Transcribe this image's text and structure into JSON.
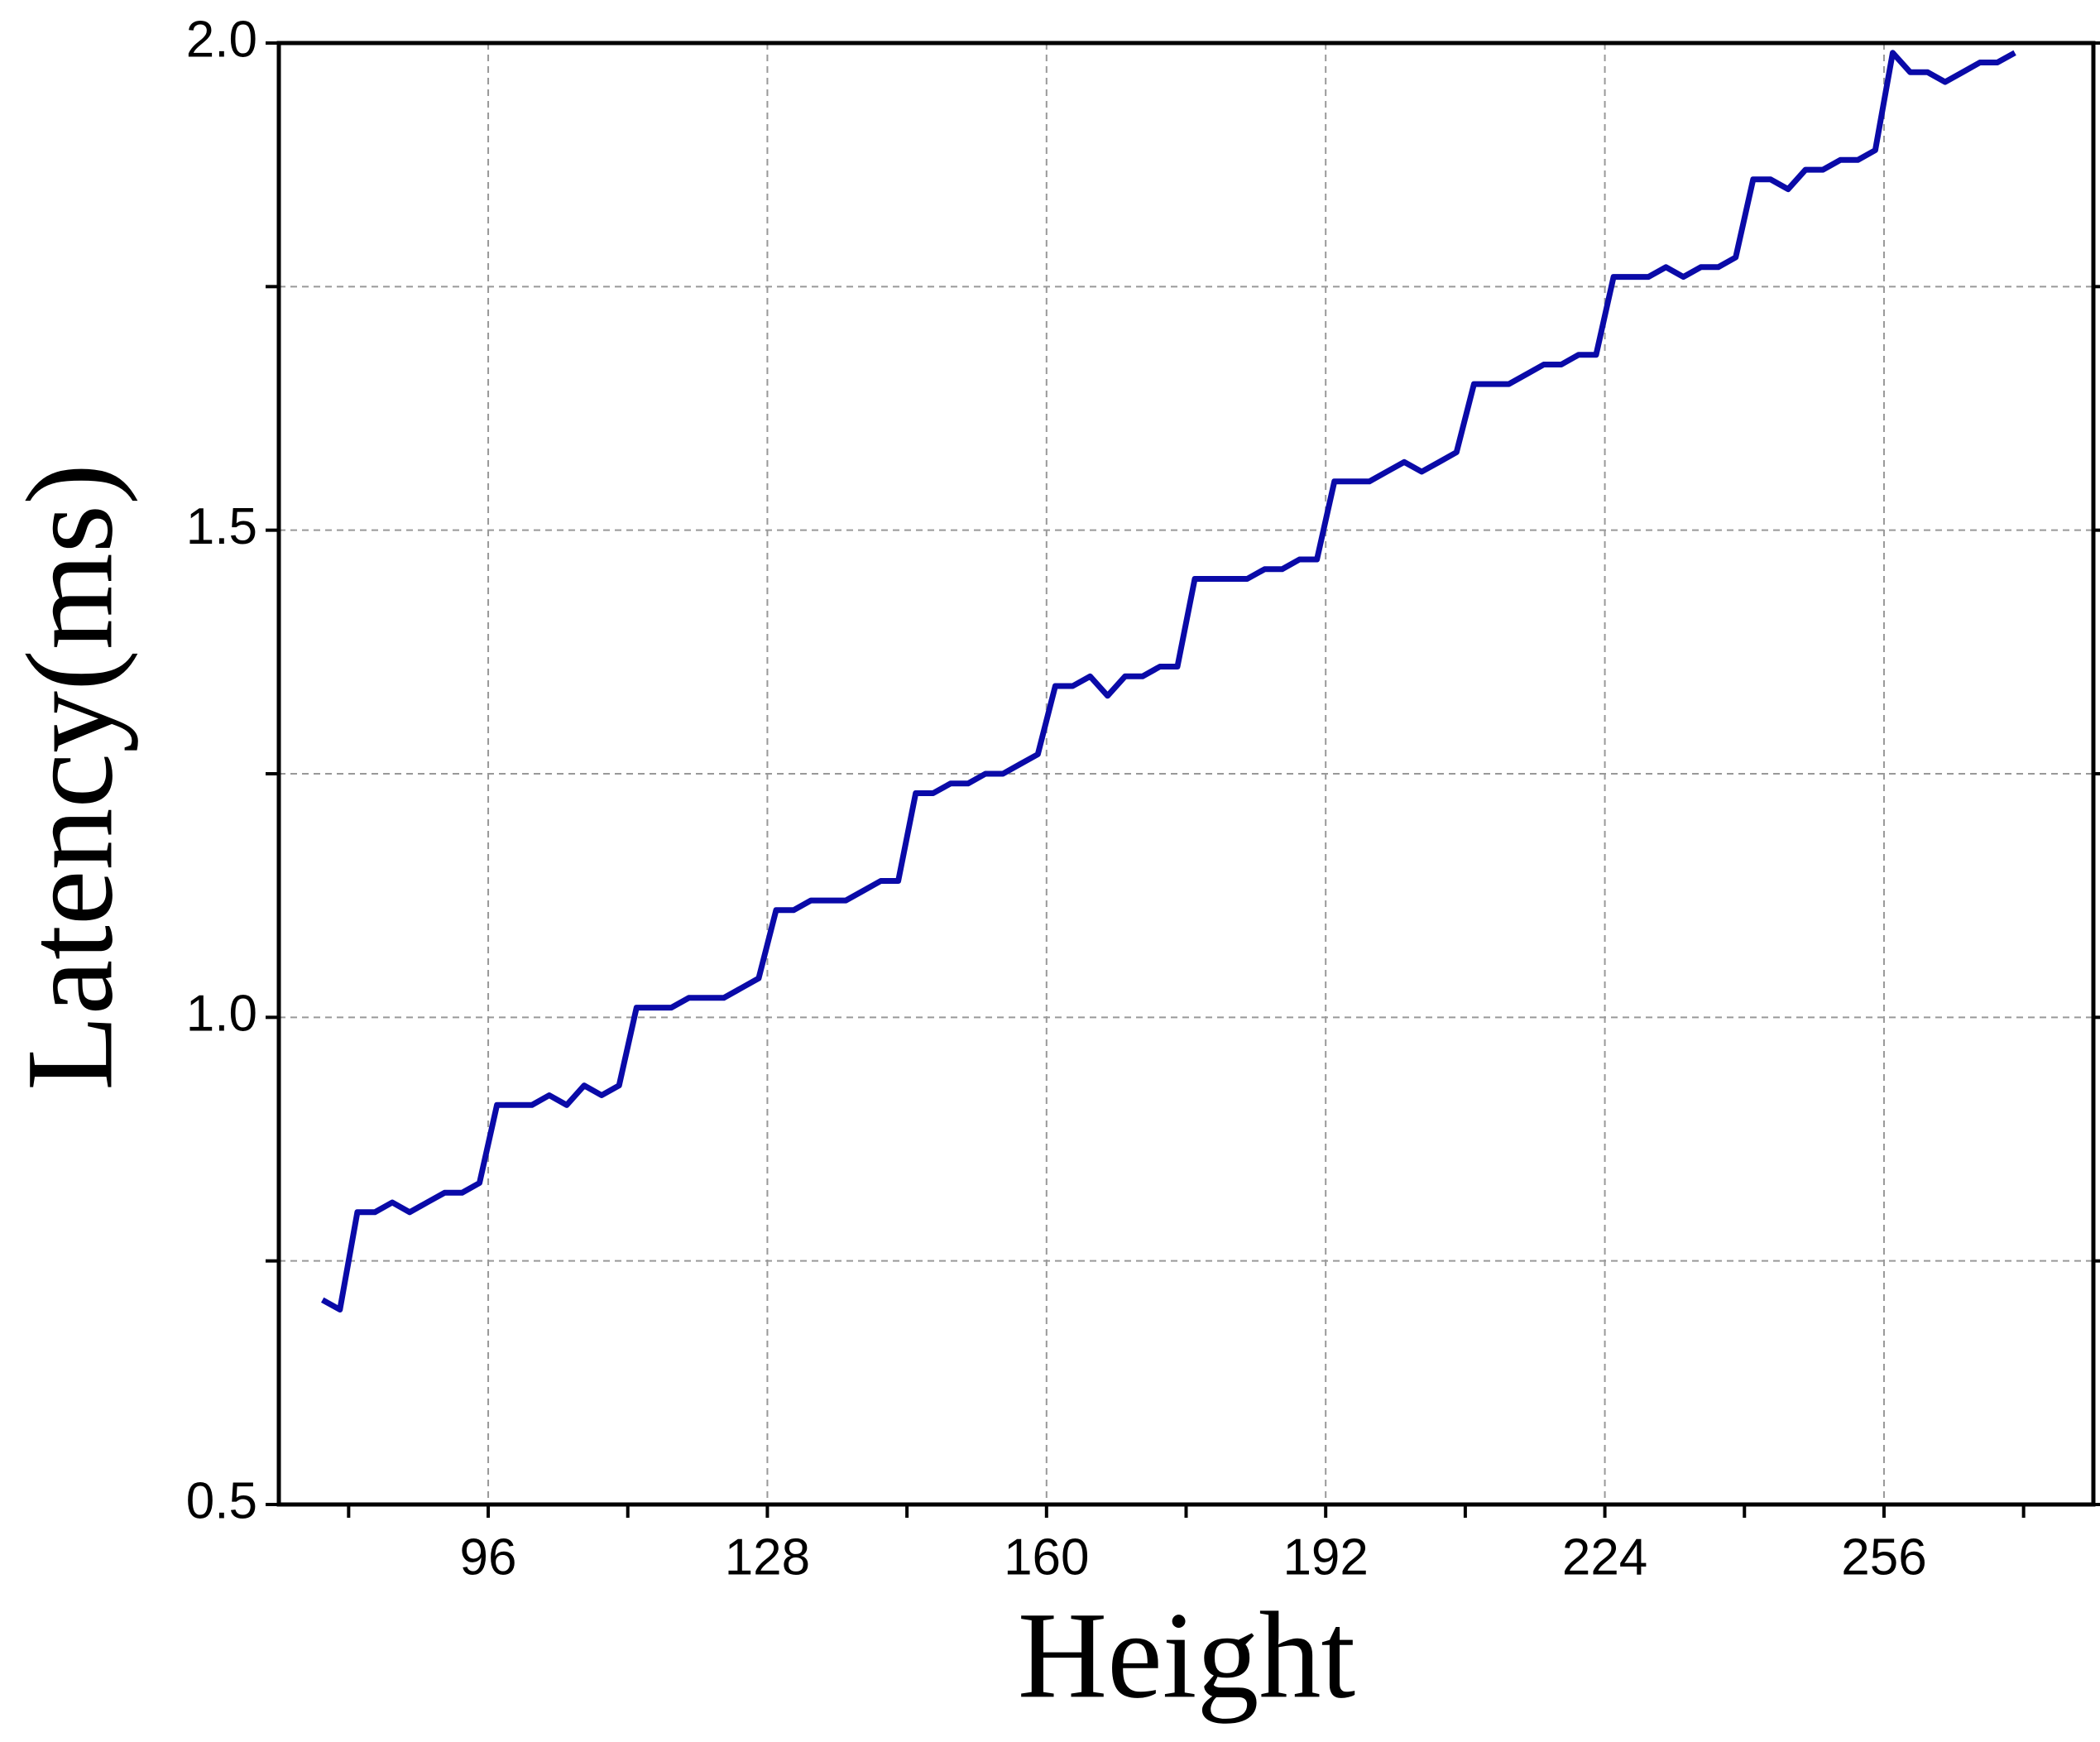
{
  "chart_data": {
    "type": "line",
    "xlabel": "Height",
    "ylabel": "Latency(ms)",
    "x": [
      77,
      79,
      81,
      83,
      85,
      87,
      89,
      91,
      93,
      95,
      97,
      99,
      101,
      103,
      105,
      107,
      109,
      111,
      113,
      115,
      117,
      119,
      121,
      123,
      125,
      127,
      129,
      131,
      133,
      135,
      137,
      139,
      141,
      143,
      145,
      147,
      149,
      151,
      153,
      155,
      157,
      159,
      161,
      163,
      165,
      167,
      169,
      171,
      173,
      175,
      177,
      179,
      181,
      183,
      185,
      187,
      189,
      191,
      193,
      195,
      197,
      199,
      201,
      203,
      205,
      207,
      209,
      211,
      213,
      215,
      217,
      219,
      221,
      223,
      225,
      227,
      229,
      231,
      233,
      235,
      237,
      239,
      241,
      243,
      245,
      247,
      249,
      251,
      253,
      255,
      257,
      259,
      261,
      263,
      265,
      267,
      269,
      271
    ],
    "values": [
      0.71,
      0.7,
      0.8,
      0.8,
      0.81,
      0.8,
      0.81,
      0.82,
      0.82,
      0.83,
      0.91,
      0.91,
      0.91,
      0.92,
      0.91,
      0.93,
      0.92,
      0.93,
      1.01,
      1.01,
      1.01,
      1.02,
      1.02,
      1.02,
      1.03,
      1.04,
      1.11,
      1.11,
      1.12,
      1.12,
      1.12,
      1.13,
      1.14,
      1.14,
      1.23,
      1.23,
      1.24,
      1.24,
      1.25,
      1.25,
      1.26,
      1.27,
      1.34,
      1.34,
      1.35,
      1.33,
      1.35,
      1.35,
      1.36,
      1.36,
      1.45,
      1.45,
      1.45,
      1.45,
      1.46,
      1.46,
      1.47,
      1.47,
      1.55,
      1.55,
      1.55,
      1.56,
      1.57,
      1.56,
      1.57,
      1.58,
      1.65,
      1.65,
      1.65,
      1.66,
      1.67,
      1.67,
      1.68,
      1.68,
      1.76,
      1.76,
      1.76,
      1.77,
      1.76,
      1.77,
      1.77,
      1.78,
      1.86,
      1.86,
      1.85,
      1.87,
      1.87,
      1.88,
      1.88,
      1.89,
      1.99,
      1.97,
      1.97,
      1.96,
      1.97,
      1.98,
      1.98,
      1.99
    ],
    "color": "#0a0aa8",
    "xlim": [
      72,
      280
    ],
    "xticks": [
      96,
      128,
      160,
      192,
      224,
      256
    ],
    "xminorticks": [
      80,
      112,
      144,
      176,
      208,
      240,
      272
    ],
    "ylim": [
      0.5,
      2.0
    ],
    "yticks": [
      0.5,
      {
        "value": 1.0,
        "label": "1.0"
      },
      1.5,
      {
        "value": 2.0,
        "label": "2.0"
      }
    ],
    "yminorticks": [
      0.75,
      1.25,
      1.75
    ],
    "grid": true
  }
}
